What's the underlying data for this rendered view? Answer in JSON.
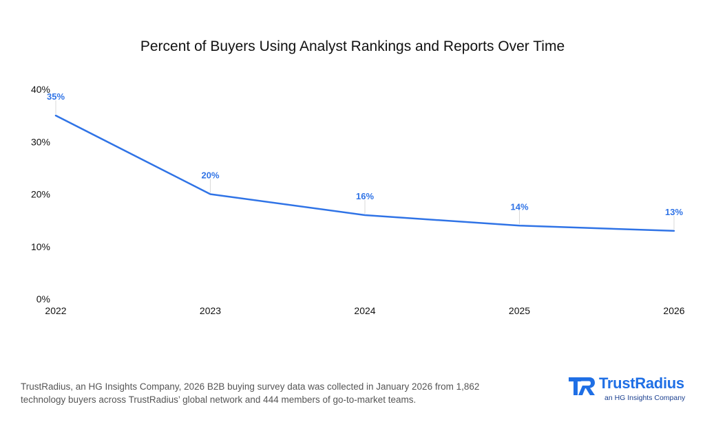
{
  "chart_data": {
    "type": "line",
    "title": "Percent of Buyers Using Analyst Rankings and Reports Over Time",
    "x": [
      "2022",
      "2023",
      "2024",
      "2025",
      "2026"
    ],
    "series": [
      {
        "values": [
          35,
          20,
          16,
          14,
          13
        ],
        "labels": [
          "35%",
          "20%",
          "16%",
          "14%",
          "13%"
        ]
      }
    ],
    "yticks": [
      "0%",
      "10%",
      "20%",
      "30%",
      "40%"
    ],
    "ylim": [
      0,
      40
    ],
    "grid": false,
    "line_color": "#2f73e6",
    "label_color": "#2f73e6"
  },
  "footnote": "TrustRadius, an HG Insights Company, 2026 B2B buying survey data was collected in January 2026 from 1,862 technology buyers across TrustRadius’ global network and 444 members of go-to-market teams.",
  "logo": {
    "name": "TrustRadius",
    "tagline": "an HG Insights Company",
    "icon": "trustradius-logo-mark",
    "color": "#1f6fe5"
  }
}
